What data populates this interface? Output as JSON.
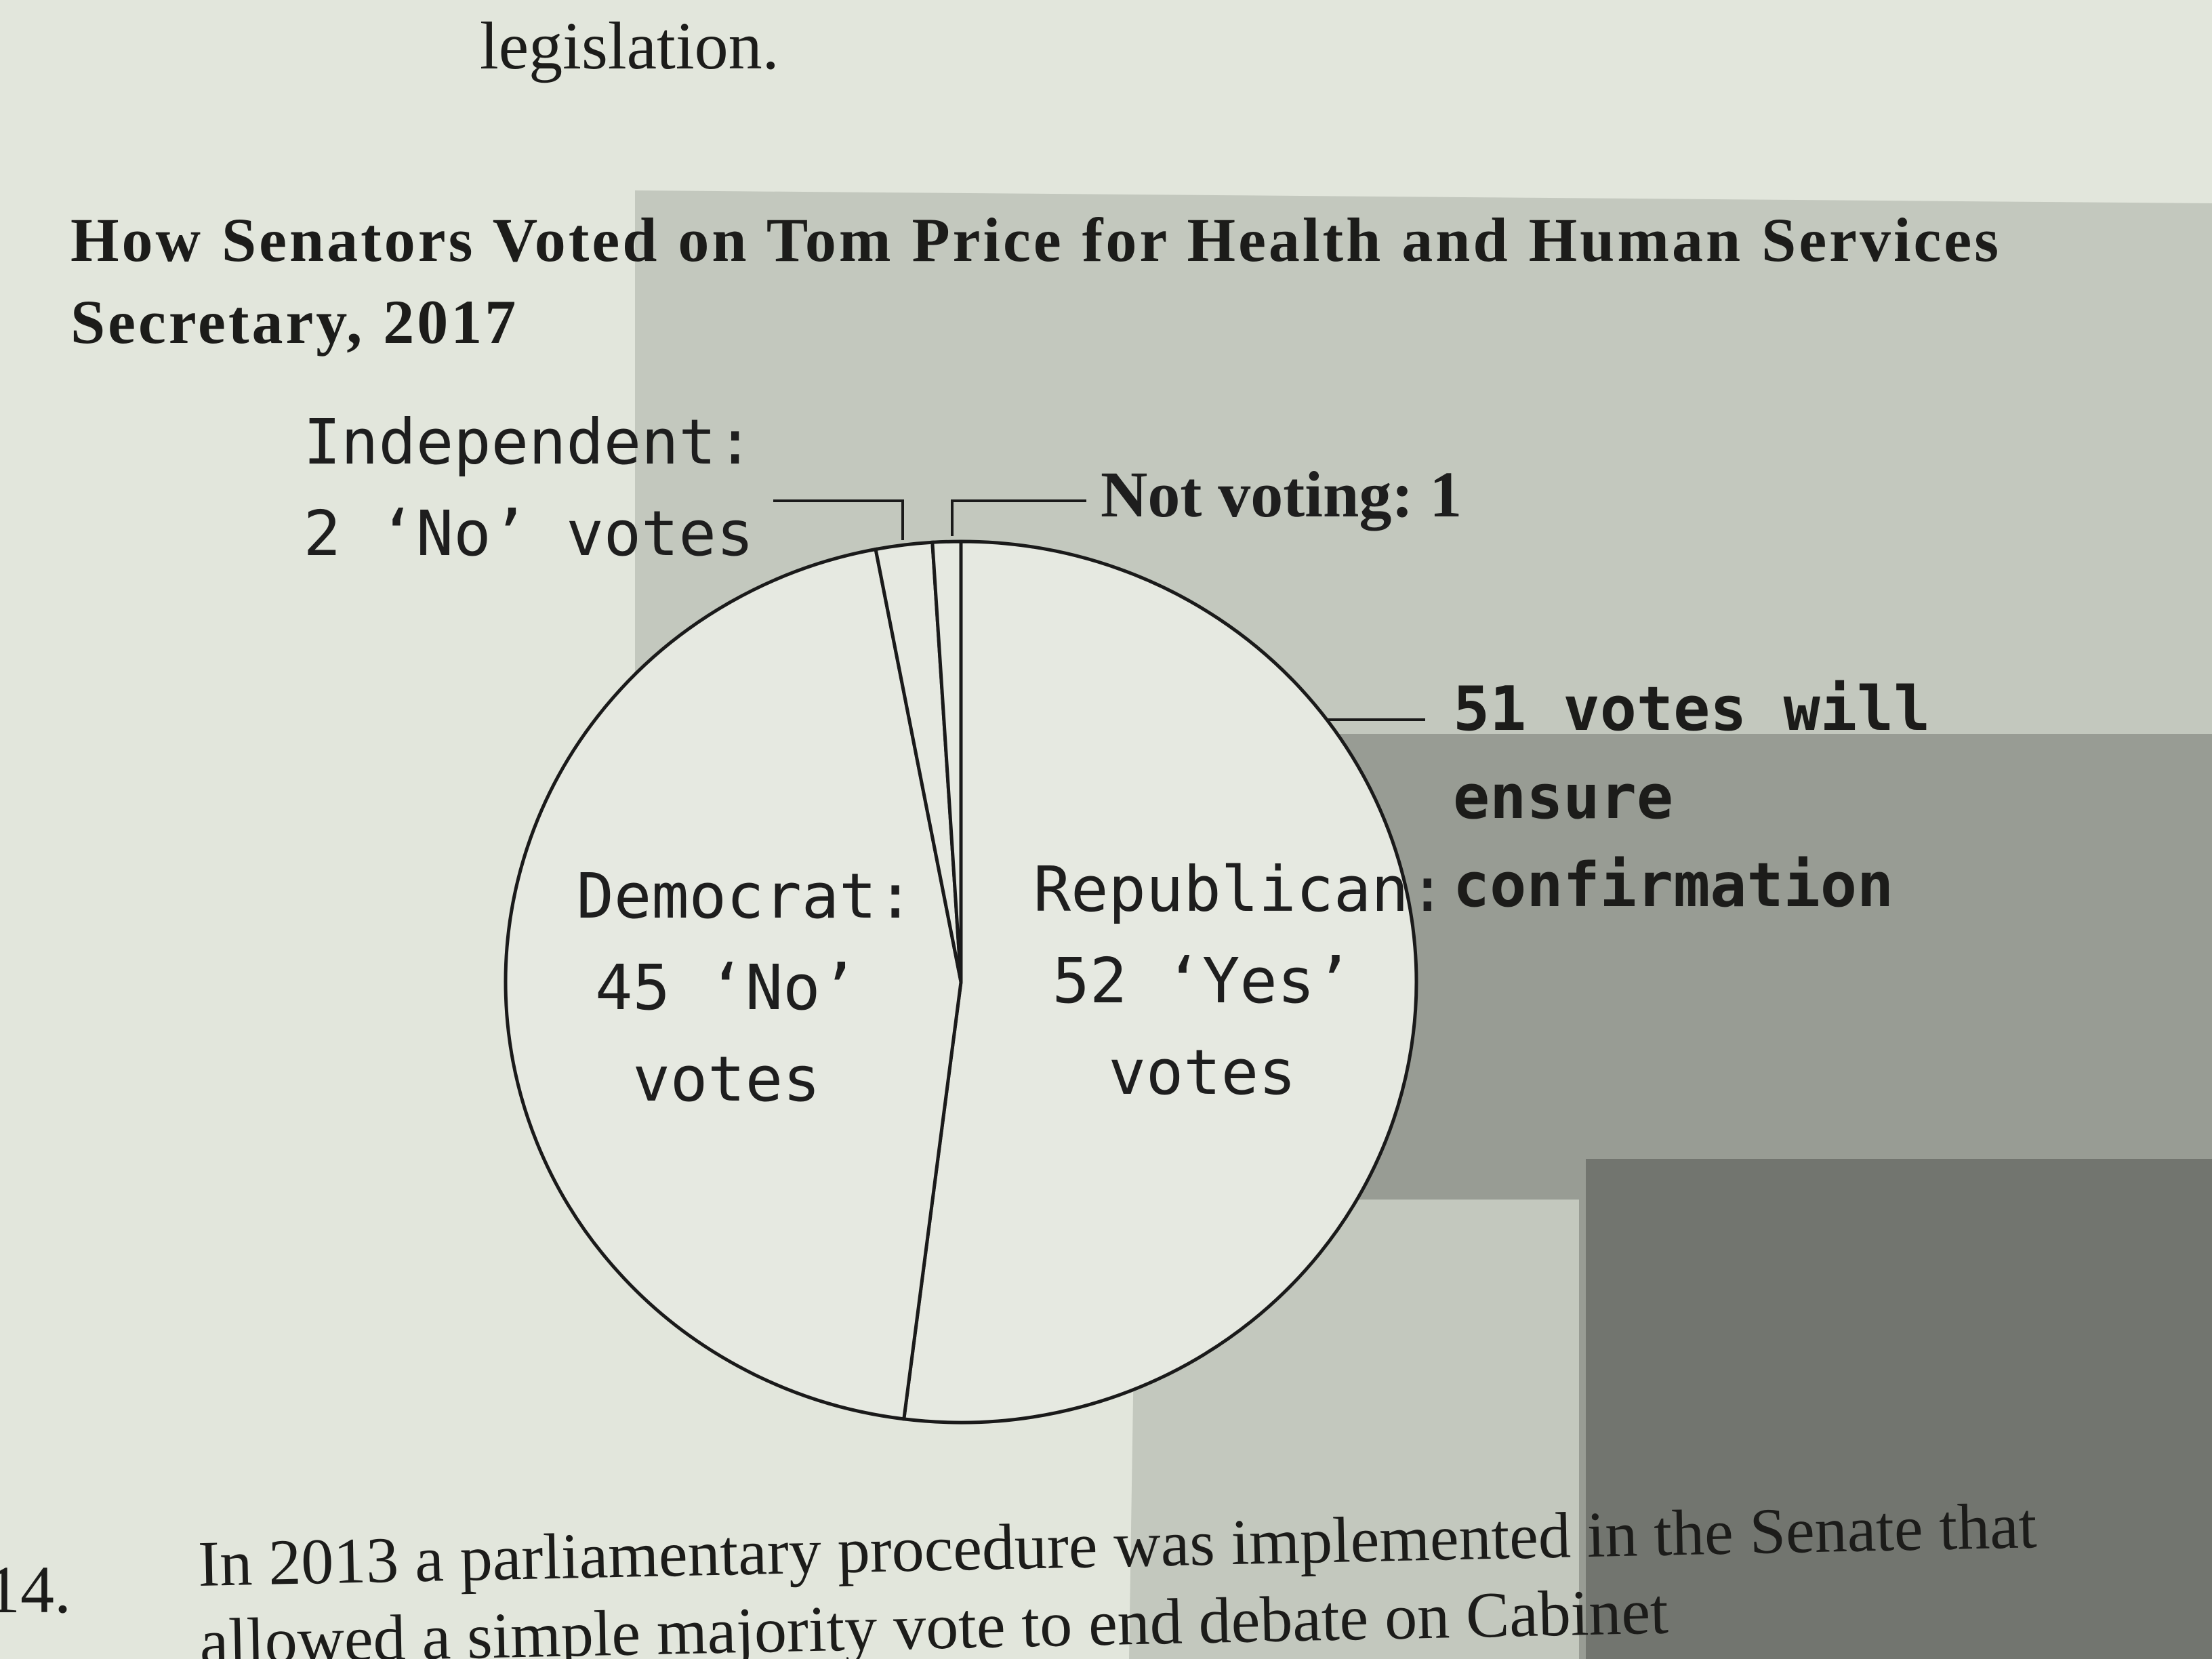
{
  "document": {
    "top_line": "legislation.",
    "question_number": "14.",
    "question_text": "In 2013 a parliamentary procedure was implemented in the Senate that allowed a simple majority vote to end debate on Cabinet"
  },
  "chart_data": {
    "type": "pie",
    "title": "How Senators Voted on Tom Price for Health and Human Services Secretary, 2017",
    "categories": [
      "Republican:",
      "Democrat:",
      "Independent:",
      "Not voting:"
    ],
    "values": [
      52,
      45,
      2,
      1
    ],
    "value_labels": [
      "52 ‘Yes’ votes",
      "45 ‘No’ votes",
      "2 ‘No’ votes",
      "1"
    ],
    "color": "#e6e9e1",
    "annotation": "51 votes will ensure confirmation"
  }
}
